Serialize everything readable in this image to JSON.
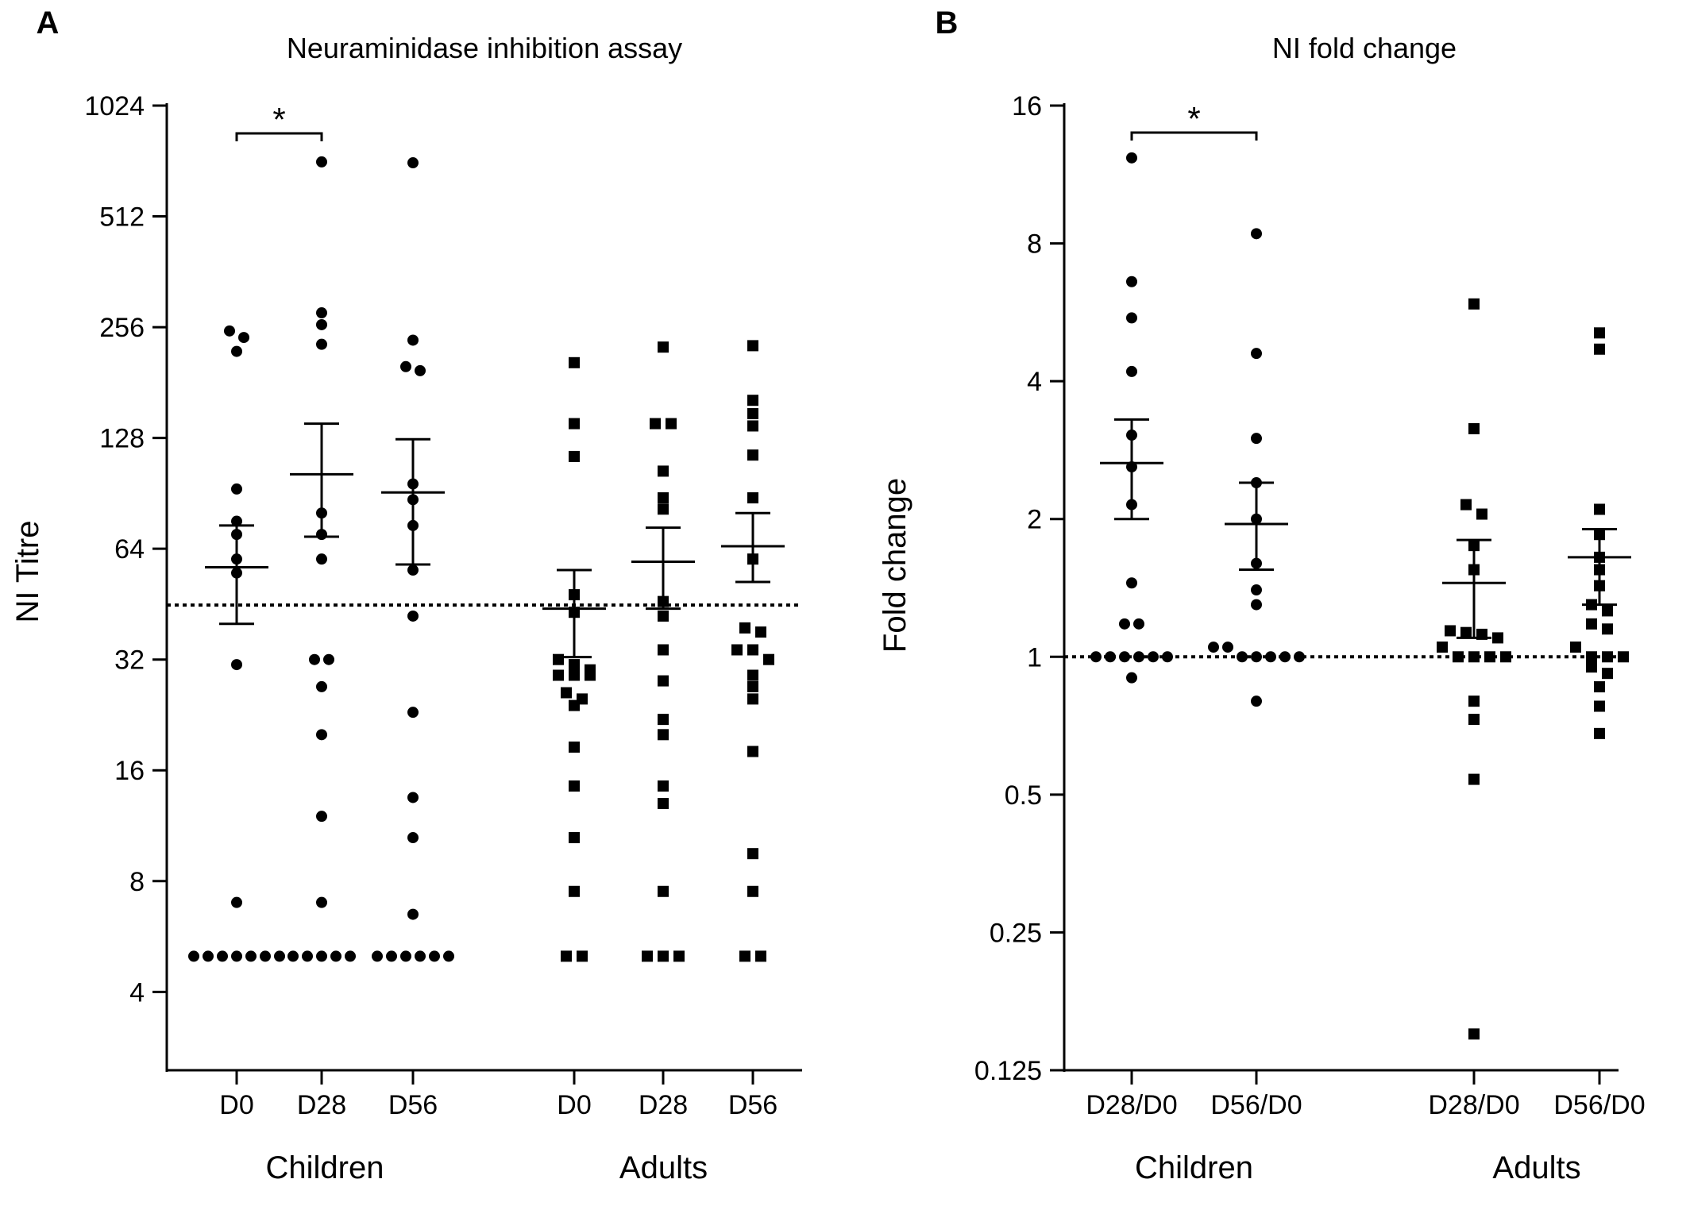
{
  "chart_data": [
    {
      "panel_label": "A",
      "type": "scatter",
      "title": "Neuraminidase inhibition assay",
      "xlabel": "",
      "ylabel": "NI Titre",
      "y_scale": "log2",
      "ylim": [
        2.45,
        1024
      ],
      "y_ticks": [
        4,
        8,
        16,
        32,
        64,
        128,
        256,
        512,
        1024
      ],
      "y_tick_labels": [
        "4",
        "8",
        "16",
        "32",
        "64",
        "128",
        "256",
        "512",
        "1024"
      ],
      "reference_line": 45,
      "categories": [
        "D0",
        "D28",
        "D56",
        "D0",
        "D28",
        "D56"
      ],
      "groups": [
        {
          "label": "Children",
          "categories": [
            0,
            1,
            2
          ],
          "marker": "circle"
        },
        {
          "label": "Adults",
          "categories": [
            3,
            4,
            5
          ],
          "marker": "square"
        }
      ],
      "significance": [
        {
          "from": 0,
          "to": 1,
          "label": "*"
        }
      ],
      "series": [
        {
          "category": "D0",
          "group": "Children",
          "values": [
            5,
            5,
            5,
            5,
            5,
            5,
            5,
            7,
            31,
            55,
            60,
            70,
            76,
            93,
            220,
            240,
            250
          ],
          "mean": 57,
          "error": [
            40,
            74
          ]
        },
        {
          "category": "D28",
          "group": "Children",
          "values": [
            5,
            5,
            5,
            5,
            5,
            7,
            12,
            20,
            27,
            32,
            32,
            60,
            70,
            80,
            230,
            260,
            280,
            720
          ],
          "mean": 102,
          "error": [
            69,
            140
          ]
        },
        {
          "category": "D56",
          "group": "Children",
          "values": [
            5,
            5,
            5,
            5,
            5,
            5,
            6.5,
            10.5,
            13.5,
            23,
            42,
            56,
            74,
            87,
            96,
            195,
            200,
            236,
            716
          ],
          "mean": 91,
          "error": [
            58,
            127
          ]
        },
        {
          "category": "D0",
          "group": "Adults",
          "values": [
            5,
            5,
            7.5,
            10.5,
            14.5,
            18.5,
            24,
            25,
            26,
            29,
            29,
            29,
            30,
            31,
            32,
            43,
            48,
            114,
            140,
            205
          ],
          "mean": 44,
          "error": [
            32.5,
            56
          ]
        },
        {
          "category": "D28",
          "group": "Adults",
          "values": [
            5,
            5,
            5,
            7.5,
            13,
            14.5,
            20,
            22,
            28,
            34,
            42,
            46,
            82,
            88,
            104,
            140,
            140,
            226
          ],
          "mean": 59,
          "error": [
            44,
            73
          ]
        },
        {
          "category": "D56",
          "group": "Adults",
          "values": [
            5,
            5,
            7.5,
            9.5,
            18,
            25,
            27,
            29,
            32,
            34,
            34,
            38,
            39,
            60,
            88,
            115,
            138,
            149,
            162,
            228
          ],
          "mean": 65,
          "error": [
            52,
            80
          ]
        }
      ]
    },
    {
      "panel_label": "B",
      "type": "scatter",
      "title": "NI fold change",
      "xlabel": "",
      "ylabel": "Fold change",
      "y_scale": "log2",
      "ylim": [
        0.125,
        16
      ],
      "y_ticks": [
        0.125,
        0.25,
        0.5,
        1,
        2,
        4,
        8,
        16
      ],
      "y_tick_labels": [
        "0.125",
        "0.25",
        "0.5",
        "1",
        "2",
        "4",
        "8",
        "16"
      ],
      "reference_line": 1,
      "categories": [
        "D28/D0",
        "D56/D0",
        "D28/D0",
        "D56/D0"
      ],
      "groups": [
        {
          "label": "Children",
          "categories": [
            0,
            1
          ],
          "marker": "circle"
        },
        {
          "label": "Adults",
          "categories": [
            2,
            3
          ],
          "marker": "square"
        }
      ],
      "significance": [
        {
          "from": 0,
          "to": 1,
          "label": "*"
        }
      ],
      "series": [
        {
          "category": "D28/D0",
          "group": "Children",
          "values": [
            0.9,
            1,
            1,
            1,
            1,
            1,
            1,
            1.18,
            1.18,
            1.45,
            2.15,
            2.6,
            3.05,
            4.2,
            5.5,
            6.6,
            12.3
          ],
          "mean": 2.65,
          "error": [
            2,
            3.3
          ]
        },
        {
          "category": "D56/D0",
          "group": "Children",
          "values": [
            0.8,
            1,
            1,
            1,
            1,
            1,
            1.05,
            1.05,
            1.3,
            1.4,
            1.6,
            2,
            2.4,
            3,
            4.6,
            8.4
          ],
          "mean": 1.95,
          "error": [
            1.55,
            2.4
          ]
        },
        {
          "category": "D28/D0",
          "group": "Adults",
          "values": [
            0.15,
            0.54,
            0.73,
            0.8,
            1,
            1,
            1,
            1,
            1.05,
            1.1,
            1.12,
            1.13,
            1.14,
            1.55,
            1.75,
            2.05,
            2.15,
            3.15,
            5.9
          ],
          "mean": 1.45,
          "error": [
            1.1,
            1.8
          ]
        },
        {
          "category": "D56/D0",
          "group": "Adults",
          "values": [
            0.68,
            0.78,
            0.86,
            0.92,
            0.95,
            1,
            1,
            1,
            1.05,
            1.15,
            1.18,
            1.26,
            1.3,
            1.43,
            1.55,
            1.65,
            1.85,
            2.1,
            4.7,
            5.1
          ],
          "mean": 1.65,
          "error": [
            1.3,
            1.9
          ]
        }
      ]
    }
  ]
}
